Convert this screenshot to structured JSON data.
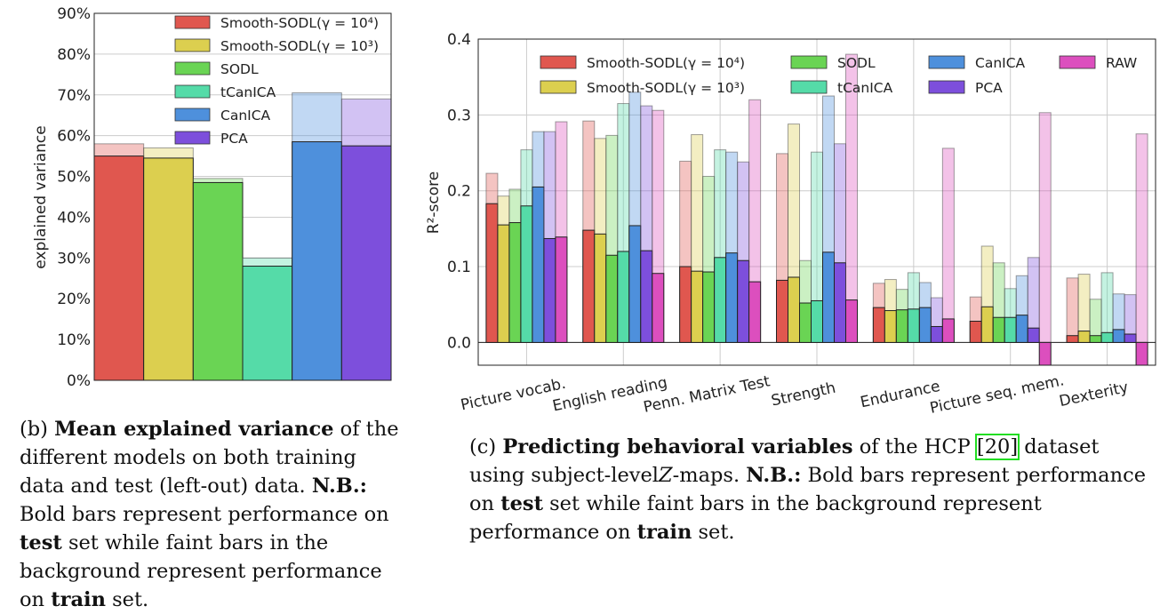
{
  "colors": {
    "smooth4": "#e0574f",
    "smooth3": "#dccf4f",
    "sodl": "#6ad454",
    "tcanica": "#55dba8",
    "canica": "#4e90dc",
    "pca": "#7d4fdc",
    "raw": "#dc4fbe"
  },
  "chart_data": [
    {
      "type": "bar",
      "ylabel": "explained variance",
      "ylim": [
        0,
        90
      ],
      "yticks": [
        "0%",
        "10%",
        "20%",
        "30%",
        "40%",
        "50%",
        "60%",
        "70%",
        "80%",
        "90%"
      ],
      "grid": true,
      "legend_position": "top-right",
      "series": [
        {
          "name": "Smooth-SODL(γ = 10⁴)",
          "color_key": "smooth4",
          "test": 55,
          "train": 58
        },
        {
          "name": "Smooth-SODL(γ = 10³)",
          "color_key": "smooth3",
          "test": 54.5,
          "train": 57
        },
        {
          "name": "SODL",
          "color_key": "sodl",
          "test": 48.5,
          "train": 49.5
        },
        {
          "name": "tCanICA",
          "color_key": "tcanica",
          "test": 28,
          "train": 30
        },
        {
          "name": "CanICA",
          "color_key": "canica",
          "test": 58.5,
          "train": 70.5
        },
        {
          "name": "PCA",
          "color_key": "pca",
          "test": 57.5,
          "train": 69
        }
      ]
    },
    {
      "type": "bar",
      "ylabel": "R²-score",
      "ylim": [
        -0.03,
        0.4
      ],
      "yticks": [
        "0.0",
        "0.1",
        "0.2",
        "0.3",
        "0.4"
      ],
      "grid": true,
      "legend_position": "top",
      "categories": [
        "Picture vocab.",
        "English reading",
        "Penn. Matrix Test",
        "Strength",
        "Endurance",
        "Picture seq. mem.",
        "Dexterity"
      ],
      "series": [
        {
          "name": "Smooth-SODL(γ = 10⁴)",
          "color_key": "smooth4",
          "test": [
            0.183,
            0.148,
            0.1,
            0.082,
            0.046,
            0.028,
            0.009
          ],
          "train": [
            0.223,
            0.292,
            0.239,
            0.249,
            0.078,
            0.06,
            0.085
          ]
        },
        {
          "name": "Smooth-SODL(γ = 10³)",
          "color_key": "smooth3",
          "test": [
            0.155,
            0.143,
            0.094,
            0.086,
            0.042,
            0.047,
            0.015
          ],
          "train": [
            0.193,
            0.269,
            0.274,
            0.288,
            0.083,
            0.127,
            0.09
          ]
        },
        {
          "name": "SODL",
          "color_key": "sodl",
          "test": [
            0.158,
            0.115,
            0.093,
            0.052,
            0.043,
            0.033,
            0.009
          ],
          "train": [
            0.202,
            0.273,
            0.219,
            0.108,
            0.07,
            0.105,
            0.057
          ]
        },
        {
          "name": "tCanICA",
          "color_key": "tcanica",
          "test": [
            0.18,
            0.12,
            0.112,
            0.055,
            0.044,
            0.033,
            0.013
          ],
          "train": [
            0.254,
            0.315,
            0.254,
            0.251,
            0.092,
            0.071,
            0.092
          ]
        },
        {
          "name": "CanICA",
          "color_key": "canica",
          "test": [
            0.205,
            0.154,
            0.118,
            0.119,
            0.046,
            0.036,
            0.017
          ],
          "train": [
            0.278,
            0.33,
            0.251,
            0.325,
            0.079,
            0.088,
            0.064
          ]
        },
        {
          "name": "PCA",
          "color_key": "pca",
          "test": [
            0.137,
            0.121,
            0.108,
            0.105,
            0.021,
            0.019,
            0.011
          ],
          "train": [
            0.278,
            0.312,
            0.238,
            0.262,
            0.059,
            0.112,
            0.063
          ]
        },
        {
          "name": "RAW",
          "color_key": "raw",
          "test": [
            0.139,
            0.091,
            0.08,
            0.056,
            0.031,
            -0.03,
            -0.03
          ],
          "train": [
            0.291,
            0.306,
            0.32,
            0.38,
            0.256,
            0.303,
            0.275
          ]
        }
      ]
    }
  ],
  "captions": {
    "left": {
      "label": "(b)",
      "bold": "Mean explained variance",
      "text1": "of the different models on both training data and test (left-out) data.",
      "nb": "N.B.:",
      "text2": "Bold bars represent performance on",
      "test": "test",
      "text3": "set while faint bars in the background represent performance on",
      "train": "train",
      "text4": "set."
    },
    "right": {
      "label": "(c)",
      "bold": "Predicting behavioral variables",
      "text1": "of the HCP",
      "cite": "[20]",
      "text2": "dataset using subject-level",
      "zmaps": "Z",
      "text3": "-maps.",
      "nb": "N.B.:",
      "text4": "Bold bars represent performance on",
      "test": "test",
      "text5": "set while faint bars in the background represent performance on",
      "train": "train",
      "text6": "set."
    }
  }
}
